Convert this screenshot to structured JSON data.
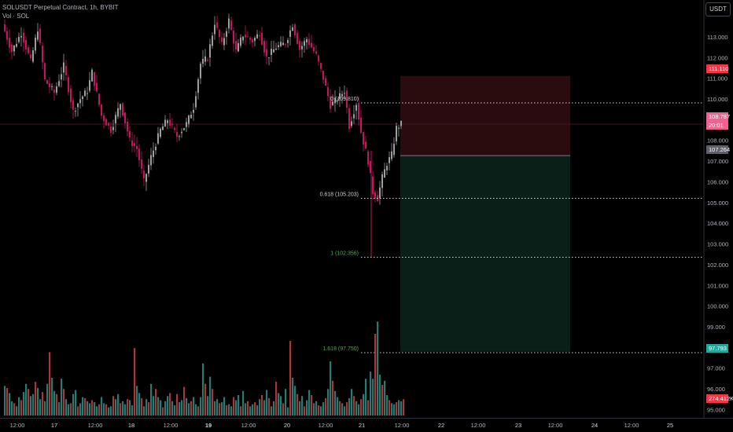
{
  "legend": {
    "title": "SOLUSDT Perpetual Contract, 1h, BYBIT",
    "volume_label": "Vol · SOL"
  },
  "currency_button": "USDT",
  "colors": {
    "up": "#26a69a",
    "down": "#ef5350",
    "candle_up": "#9e9e9e",
    "candle_down": "#c2185b",
    "stop_zone": "#2a0c0f",
    "target_zone": "#0b1f19"
  },
  "price_labels": {
    "stop": "111.110",
    "last": "108.787",
    "countdown": "20:01",
    "entry": "107.264",
    "target": "97.793",
    "volume": "274.412K"
  },
  "chart_data": {
    "type": "candlestick",
    "title": "SOLUSDT Perpetual Contract, 1h, BYBIT",
    "ylim": [
      94.6,
      114.4
    ],
    "y_ticks": [
      "113.000",
      "112.000",
      "111.000",
      "110.000",
      "109.000",
      "108.000",
      "107.000",
      "106.000",
      "105.000",
      "104.000",
      "103.000",
      "102.000",
      "101.000",
      "100.000",
      "99.000",
      "98.000",
      "97.000",
      "96.000",
      "95.000"
    ],
    "x_ticks": [
      "12:00",
      "17",
      "12:00",
      "18",
      "12:00",
      "19",
      "12:00",
      "20",
      "12:00",
      "21",
      "12:00",
      "22",
      "12:00",
      "23",
      "12:00",
      "24",
      "12:00",
      "25"
    ],
    "price_path": [
      [
        0,
        113.6
      ],
      [
        4,
        112.3
      ],
      [
        8,
        113.2
      ],
      [
        12,
        111.8
      ],
      [
        15,
        113.4
      ],
      [
        18,
        110.9
      ],
      [
        22,
        110.3
      ],
      [
        26,
        111.6
      ],
      [
        30,
        109.4
      ],
      [
        33,
        110.0
      ],
      [
        36,
        110.4
      ],
      [
        38,
        111.3
      ],
      [
        42,
        109.2
      ],
      [
        46,
        108.5
      ],
      [
        50,
        109.8
      ],
      [
        54,
        108.0
      ],
      [
        57,
        107.6
      ],
      [
        60,
        106.0
      ],
      [
        63,
        107.2
      ],
      [
        67,
        108.5
      ],
      [
        70,
        109.0
      ],
      [
        74,
        108.2
      ],
      [
        78,
        108.8
      ],
      [
        81,
        109.6
      ],
      [
        84,
        111.7
      ],
      [
        87,
        112.0
      ],
      [
        90,
        113.7
      ],
      [
        93,
        112.6
      ],
      [
        96,
        113.8
      ],
      [
        99,
        112.3
      ],
      [
        102,
        113.1
      ],
      [
        106,
        112.8
      ],
      [
        109,
        113.2
      ],
      [
        112,
        112.0
      ],
      [
        116,
        112.5
      ],
      [
        120,
        112.7
      ],
      [
        123,
        113.6
      ],
      [
        126,
        112.4
      ],
      [
        129,
        112.9
      ],
      [
        133,
        112.1
      ],
      [
        136,
        111.0
      ],
      [
        139,
        109.7
      ],
      [
        142,
        110.0
      ],
      [
        145,
        110.4
      ],
      [
        147,
        108.7
      ],
      [
        150,
        109.8
      ],
      [
        152,
        108.4
      ],
      [
        155,
        107.0
      ],
      [
        157,
        105.5
      ],
      [
        159,
        105.2
      ],
      [
        161,
        106.2
      ],
      [
        163,
        106.9
      ],
      [
        165,
        107.3
      ],
      [
        167,
        108.6
      ],
      [
        169,
        108.79
      ]
    ],
    "annotations": {
      "fib_0": "0 (109.810)",
      "fib_0618": "0.618 (105.203)",
      "fib_1": "1 (102.356)",
      "fib_1618": "1.618 (97.750)"
    },
    "fib_levels": [
      109.81,
      105.203,
      102.356,
      97.75
    ],
    "position": {
      "stop": 111.11,
      "entry": 107.264,
      "target": 97.793
    },
    "series_volume_ratio": [
      0.29,
      0.27,
      0.22,
      0.14,
      0.12,
      0.09,
      0.18,
      0.15,
      0.23,
      0.31,
      0.26,
      0.19,
      0.21,
      0.33,
      0.27,
      0.16,
      0.23,
      0.14,
      0.31,
      0.62,
      0.37,
      0.24,
      0.21,
      0.13,
      0.36,
      0.26,
      0.16,
      0.11,
      0.12,
      0.21,
      0.25,
      0.09,
      0.12,
      0.18,
      0.17,
      0.14,
      0.12,
      0.15,
      0.13,
      0.09,
      0.11,
      0.18,
      0.12,
      0.11,
      0.08,
      0.09,
      0.19,
      0.16,
      0.21,
      0.12,
      0.14,
      0.11,
      0.16,
      0.15,
      0.1,
      0.66,
      0.29,
      0.22,
      0.17,
      0.09,
      0.16,
      0.13,
      0.31,
      0.19,
      0.26,
      0.18,
      0.15,
      0.08,
      0.14,
      0.19,
      0.22,
      0.14,
      0.1,
      0.21,
      0.13,
      0.15,
      0.28,
      0.17,
      0.12,
      0.14,
      0.18,
      0.11,
      0.09,
      0.18,
      0.51,
      0.31,
      0.19,
      0.38,
      0.26,
      0.14,
      0.16,
      0.12,
      0.13,
      0.18,
      0.1,
      0.11,
      0.09,
      0.18,
      0.15,
      0.2,
      0.09,
      0.24,
      0.12,
      0.14,
      0.09,
      0.11,
      0.13,
      0.1,
      0.16,
      0.2,
      0.15,
      0.25,
      0.17,
      0.09,
      0.14,
      0.33,
      0.22,
      0.19,
      0.12,
      0.26,
      0.08,
      0.73,
      0.37,
      0.29,
      0.21,
      0.14,
      0.19,
      0.09,
      0.15,
      0.25,
      0.2,
      0.12,
      0.14,
      0.1,
      0.09,
      0.13,
      0.17,
      0.26,
      0.53,
      0.34,
      0.24,
      0.18,
      0.14,
      0.12,
      0.09,
      0.13,
      0.17,
      0.26,
      0.19,
      0.14,
      0.11,
      0.16,
      0.21,
      0.36,
      0.15,
      0.43,
      0.36,
      0.8,
      0.92,
      0.4,
      0.3,
      0.34,
      0.2,
      0.15,
      0.12,
      0.11,
      0.13,
      0.15,
      0.14,
      0.16
    ]
  }
}
